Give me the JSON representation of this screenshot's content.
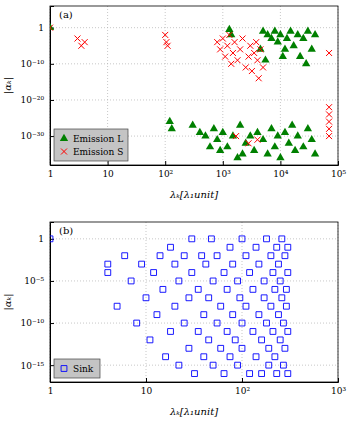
{
  "chart_data": [
    {
      "type": "scatter",
      "title": "(a)",
      "x_label": "λₖ[λ₁unit]",
      "y_label": "|αₖ|",
      "log": true,
      "grid": true,
      "legend": "lower left",
      "xlim": [
        1,
        100000
      ],
      "ylim": [
        1e-38,
        1000000
      ],
      "xticks": [
        1,
        10,
        {
          "value": 100,
          "label": "10²"
        },
        {
          "value": 1000,
          "label": "10³"
        },
        {
          "value": 10000,
          "label": "10⁴"
        },
        {
          "value": 100000,
          "label": "10⁵"
        }
      ],
      "yticks": [
        {
          "value": 1e-30,
          "label": "10⁻³⁰"
        },
        {
          "value": 1e-20,
          "label": "10⁻²⁰"
        },
        {
          "value": 1e-10,
          "label": "10⁻¹⁰"
        },
        1
      ],
      "series": [
        {
          "name": "Emission L",
          "color": "#008000",
          "marker": "triangle",
          "x": [
            1,
            1300,
            1400,
            5000,
            6000,
            7000,
            8000,
            9000,
            10000,
            12000,
            13000,
            15000,
            17000,
            20000,
            22000,
            25000,
            28000,
            30000,
            35000,
            40000,
            4500,
            5500,
            11000,
            120,
            130,
            300,
            400,
            500,
            700,
            800,
            1000,
            1200,
            1500,
            2000,
            2500,
            3000,
            3500,
            4000,
            5000,
            6000,
            7000,
            8000,
            9000,
            10000,
            12000,
            14000,
            16000,
            18000,
            20000,
            25000,
            30000,
            35000,
            40000,
            1800,
            2200,
            900,
            600
          ],
          "values": [
            1,
            0.3,
            0.01,
            0.1,
            0.01,
            0.001,
            0.1,
            0.0001,
            0.01,
            1e-06,
            0.001,
            0.1,
            1e-05,
            0.01,
            1e-08,
            0.001,
            1e-10,
            0.1,
            1e-06,
            0.01,
            1e-06,
            1e-09,
            1e-08,
            1e-26,
            1e-28,
            1e-27,
            1e-29,
            1e-30,
            1e-28,
            1e-31,
            1e-29,
            1e-33,
            1e-30,
            1e-27,
            1e-32,
            1e-30,
            1e-34,
            1e-29,
            1e-31,
            1e-35,
            1e-28,
            1e-33,
            1e-30,
            1e-36,
            1e-29,
            1e-32,
            1e-27,
            1e-34,
            1e-30,
            1e-33,
            1e-28,
            1e-31,
            1e-35,
            1e-36,
            1e-35,
            1e-34,
            1e-33
          ]
        },
        {
          "name": "Emission S",
          "color": "#ff0000",
          "marker": "x",
          "x": [
            1,
            3,
            3.5,
            4,
            100,
            105,
            110,
            800,
            900,
            1000,
            1100,
            1200,
            1300,
            1400,
            1500,
            1600,
            1800,
            2000,
            2200,
            2500,
            2800,
            3000,
            3200,
            3500,
            3800,
            4000,
            4200,
            4500,
            5000,
            70000,
            70000,
            70000,
            70000,
            70000,
            70000,
            1700,
            2800,
            4000
          ],
          "values": [
            1,
            0.001,
            1e-05,
            0.0001,
            0.01,
            0.0001,
            1e-05,
            0.0001,
            1e-06,
            0.001,
            1e-08,
            1e-05,
            0.01,
            1e-10,
            1e-07,
            0.0001,
            1e-09,
            1e-06,
            0.001,
            1e-11,
            1e-08,
            1e-05,
            1e-12,
            1e-07,
            0.0001,
            1e-09,
            1e-14,
            1e-06,
            1e-11,
            1e-07,
            1e-22,
            1e-24,
            1e-26,
            1e-28,
            1e-30,
            1e-30,
            1e-32,
            1e-31
          ]
        }
      ]
    },
    {
      "type": "scatter",
      "title": "(b)",
      "x_label": "λₖ[λ₁unit]",
      "y_label": "|αₖ|",
      "log": true,
      "grid": true,
      "legend": "lower left",
      "xlim": [
        1,
        1000
      ],
      "ylim": [
        1e-17,
        100
      ],
      "xticks": [
        1,
        10,
        {
          "value": 100,
          "label": "10²"
        },
        {
          "value": 1000,
          "label": "10³"
        }
      ],
      "yticks": [
        {
          "value": 1e-15,
          "label": "10⁻¹⁵"
        },
        {
          "value": 1e-10,
          "label": "10⁻¹⁰"
        },
        {
          "value": 1e-05,
          "label": "10⁻⁵"
        },
        1
      ],
      "series": [
        {
          "name": "Sink",
          "color": "#0000ff",
          "marker": "square",
          "x": [
            1,
            4,
            4,
            5,
            6,
            7,
            8,
            9,
            10,
            11,
            12,
            13,
            14,
            15,
            16,
            18,
            18,
            20,
            20,
            22,
            22,
            25,
            25,
            28,
            28,
            30,
            30,
            32,
            35,
            35,
            38,
            40,
            40,
            42,
            45,
            45,
            48,
            50,
            50,
            55,
            55,
            60,
            60,
            65,
            65,
            70,
            70,
            75,
            75,
            80,
            80,
            85,
            90,
            90,
            95,
            100,
            100,
            100,
            110,
            110,
            120,
            120,
            130,
            130,
            140,
            140,
            150,
            150,
            160,
            160,
            170,
            170,
            180,
            180,
            190,
            190,
            200,
            200,
            210,
            210,
            220,
            220,
            230,
            230,
            240,
            240,
            250,
            250,
            260,
            260,
            270,
            270,
            280,
            280,
            290,
            290,
            300,
            300,
            300,
            300
          ],
          "values": [
            1,
            0.001,
            0.0001,
            1e-08,
            0.01,
            1e-05,
            1e-10,
            0.001,
            1e-07,
            1e-12,
            0.0001,
            1e-09,
            0.01,
            1e-06,
            1e-14,
            0.1,
            1e-11,
            0.001,
            1e-08,
            1e-05,
            1e-15,
            0.01,
            1e-10,
            1e-07,
            1e-13,
            1,
            0.0001,
            1e-16,
            1e-06,
            1e-11,
            0.01,
            1e-09,
            1e-14,
            0.001,
            1e-07,
            1e-12,
            1,
            1e-05,
            1e-15,
            1e-10,
            0.01,
            1e-08,
            1e-13,
            0.0001,
            1e-16,
            1e-06,
            1e-11,
            0.1,
            1e-14,
            1e-09,
            0.001,
            1e-12,
            1e-05,
            1e-15,
            1e-07,
            1,
            1e-10,
            1e-13,
            0.01,
            1e-08,
            1e-16,
            0.0001,
            1e-11,
            1e-06,
            1e-14,
            0.1,
            1e-09,
            0.001,
            1e-12,
            1e-16,
            1e-05,
            1e-07,
            1,
            1e-10,
            1e-15,
            1e-13,
            0.01,
            1e-08,
            0.0001,
            1e-11,
            1e-06,
            1e-14,
            0.1,
            1e-16,
            1e-09,
            0.001,
            1e-12,
            1e-05,
            1e-07,
            1,
            1e-15,
            1e-10,
            0.01,
            1e-13,
            1e-06,
            1e-08,
            0.0001,
            1e-11,
            1e-16,
            0.1
          ]
        }
      ]
    }
  ]
}
